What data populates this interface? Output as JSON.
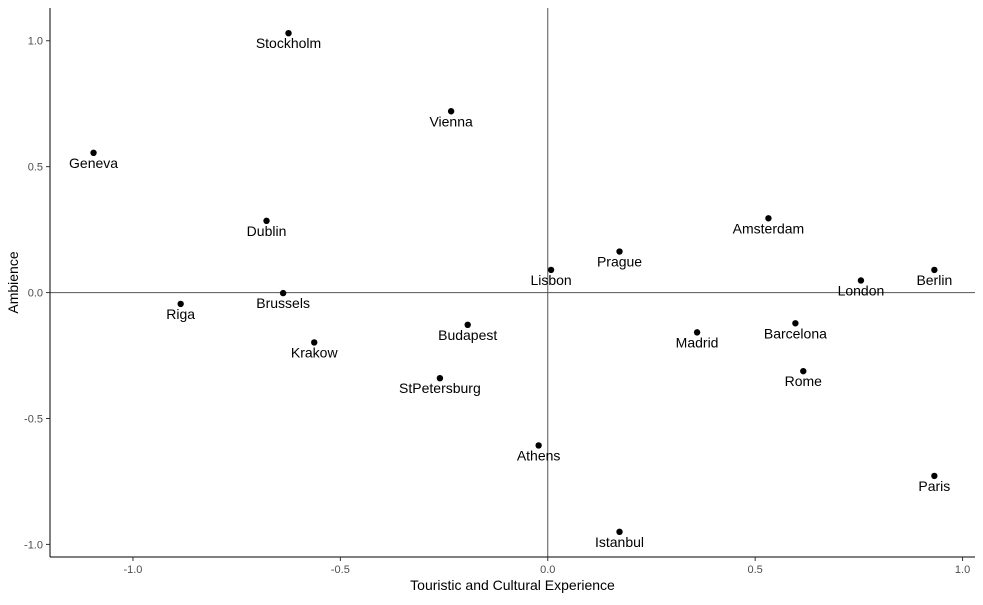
{
  "chart_data": {
    "type": "scatter",
    "xlabel": "Touristic and Cultural Experience",
    "ylabel": "Ambience",
    "xlim": [
      -1.2,
      1.03
    ],
    "ylim": [
      -1.05,
      1.13
    ],
    "xticks": [
      -1.0,
      -0.5,
      0.0,
      0.5,
      1.0
    ],
    "xtick_labels": [
      "-1.0",
      "-0.5",
      "0.0",
      "0.5",
      "1.0"
    ],
    "yticks": [
      -1.0,
      -0.5,
      0.0,
      0.5,
      1.0
    ],
    "ytick_labels": [
      "-1.0",
      "-0.5",
      "0.0",
      "0.5",
      "1.0"
    ],
    "reference_lines": {
      "x": 0,
      "y": 0
    },
    "grid": false,
    "point_color": "#000000",
    "points": [
      {
        "label": "Stockholm",
        "x": -0.625,
        "y": 1.03
      },
      {
        "label": "Vienna",
        "x": -0.233,
        "y": 0.72
      },
      {
        "label": "Geneva",
        "x": -1.095,
        "y": 0.555
      },
      {
        "label": "Dublin",
        "x": -0.678,
        "y": 0.285
      },
      {
        "label": "Amsterdam",
        "x": 0.532,
        "y": 0.295
      },
      {
        "label": "Prague",
        "x": 0.173,
        "y": 0.163
      },
      {
        "label": "Lisbon",
        "x": 0.008,
        "y": 0.09
      },
      {
        "label": "Berlin",
        "x": 0.932,
        "y": 0.09
      },
      {
        "label": "London",
        "x": 0.755,
        "y": 0.048
      },
      {
        "label": "Brussels",
        "x": -0.638,
        "y": -0.002
      },
      {
        "label": "Riga",
        "x": -0.885,
        "y": -0.045
      },
      {
        "label": "Budapest",
        "x": -0.193,
        "y": -0.128
      },
      {
        "label": "Barcelona",
        "x": 0.597,
        "y": -0.122
      },
      {
        "label": "Madrid",
        "x": 0.36,
        "y": -0.158
      },
      {
        "label": "Krakow",
        "x": -0.563,
        "y": -0.198
      },
      {
        "label": "Rome",
        "x": 0.616,
        "y": -0.312
      },
      {
        "label": "StPetersburg",
        "x": -0.26,
        "y": -0.34
      },
      {
        "label": "Athens",
        "x": -0.022,
        "y": -0.607
      },
      {
        "label": "Paris",
        "x": 0.932,
        "y": -0.728
      },
      {
        "label": "Istanbul",
        "x": 0.173,
        "y": -0.95
      }
    ]
  }
}
